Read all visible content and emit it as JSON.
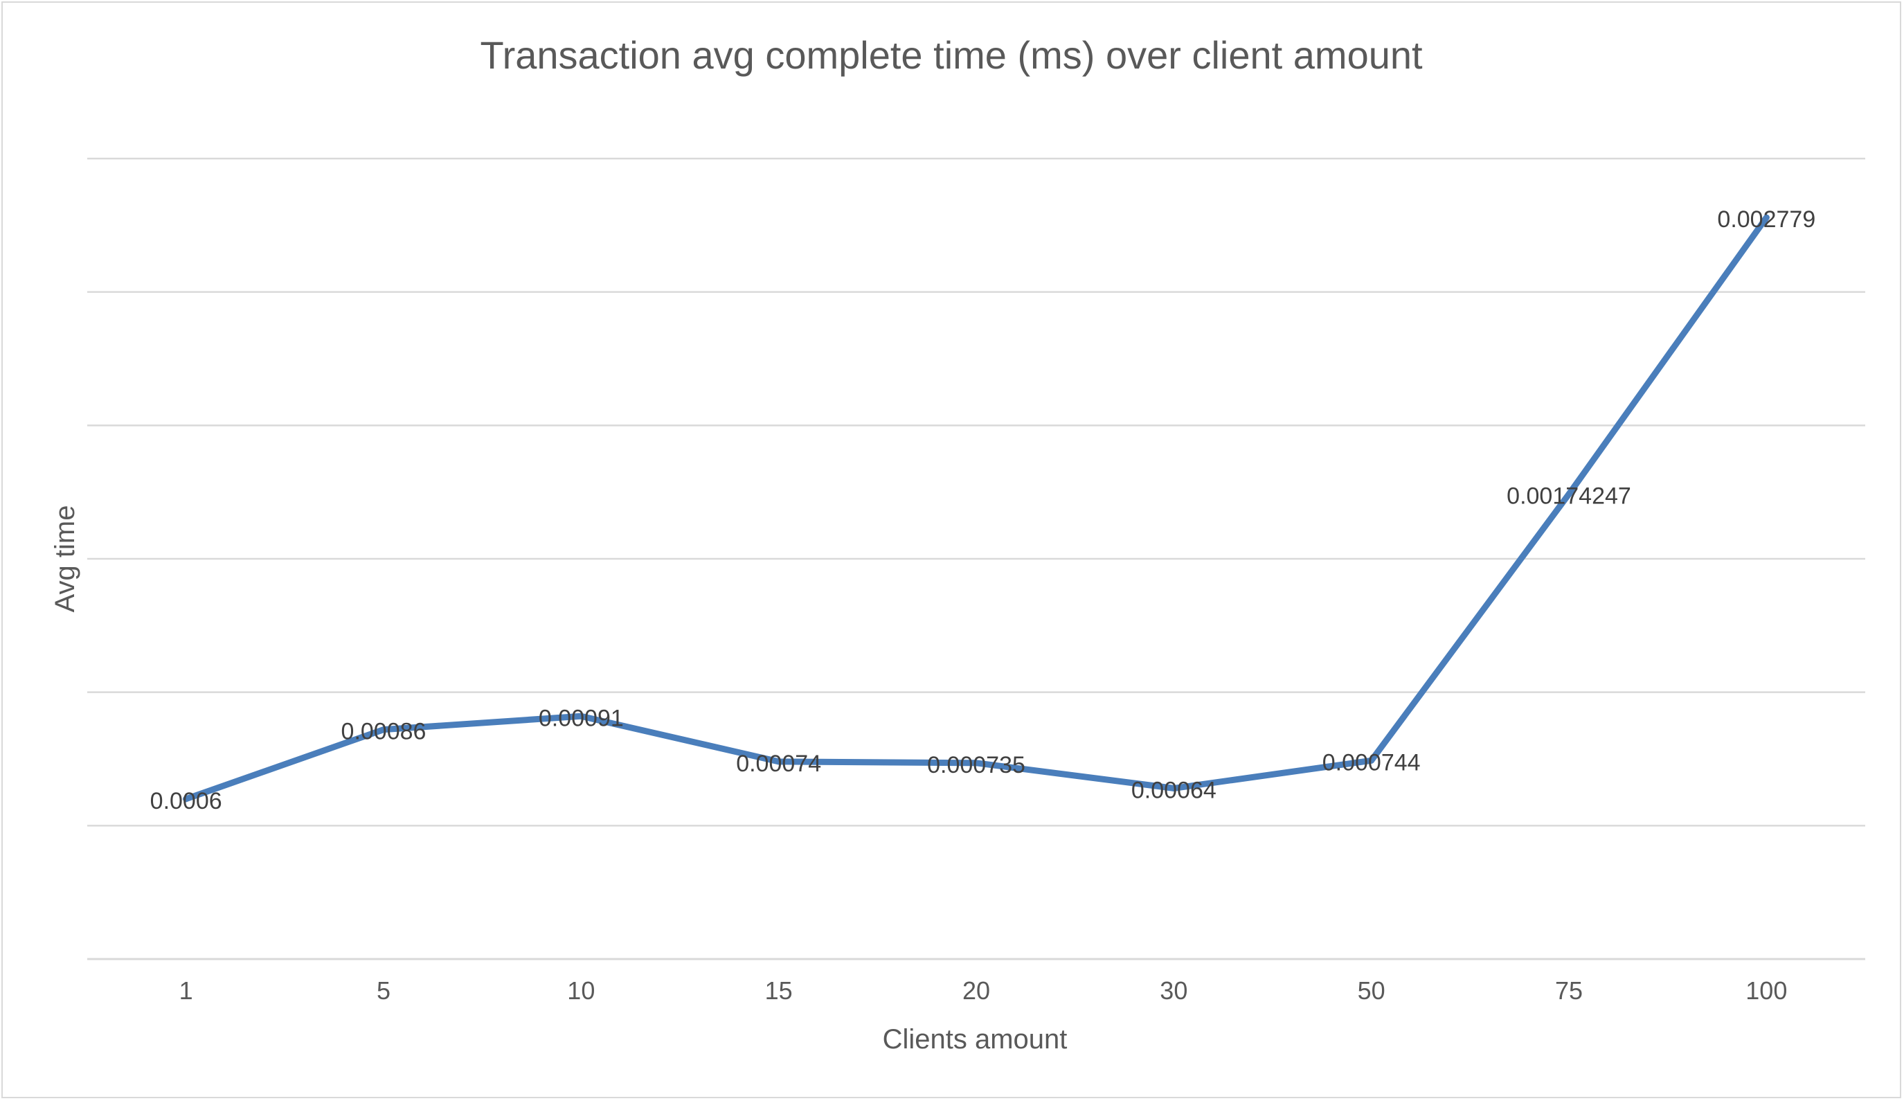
{
  "chart_data": {
    "type": "line",
    "title": "Transaction avg complete time (ms) over client amount",
    "xlabel": "Clients amount",
    "ylabel": "Avg time",
    "categories": [
      "1",
      "5",
      "10",
      "15",
      "20",
      "30",
      "50",
      "75",
      "100"
    ],
    "series": [
      {
        "values": [
          0.0006,
          0.00086,
          0.00091,
          0.00074,
          0.000735,
          0.00064,
          0.000744,
          0.00174247,
          0.002779
        ],
        "labels": [
          "0.0006",
          "0.00086",
          "0.00091",
          "0.00074",
          "0.000735",
          "0.00064",
          "0.000744",
          "0.00174247",
          "0.002779"
        ]
      }
    ],
    "ylim": [
      0,
      0.003
    ],
    "gridlines_y": 6,
    "grid": true,
    "y_tick_labels_shown": false,
    "legend": "none",
    "colors": {
      "line": "#4a7ebb",
      "grid": "#d9d9d9",
      "text": "#595959",
      "label": "#404040"
    }
  }
}
